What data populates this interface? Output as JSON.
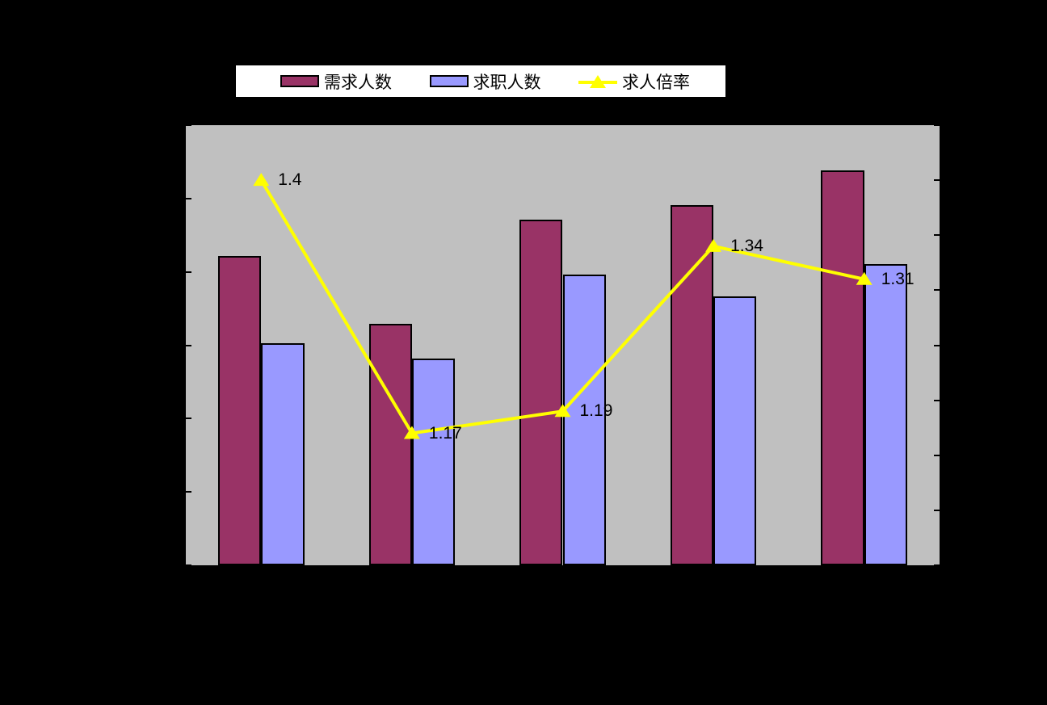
{
  "legend": {
    "items": [
      {
        "label": "需求人数",
        "swatch": "bar",
        "color": "#993366"
      },
      {
        "label": "求职人数",
        "swatch": "bar",
        "color": "#9999FF"
      },
      {
        "label": "求人倍率",
        "swatch": "line-triangle",
        "color": "#FFFF00"
      }
    ]
  },
  "colors": {
    "chart_background": "#000000",
    "plot_background": "#C0C0C0",
    "axis": "#000000",
    "legend_background": "#FFFFFF",
    "data_label_text": "#000000"
  },
  "chart_data": {
    "type": "bar",
    "subtype": "grouped-bars-with-line-overlay",
    "title": "",
    "categories": [
      "",
      "",
      "",
      "",
      ""
    ],
    "series": [
      {
        "name": "需求人数",
        "type": "bar",
        "axis": "left",
        "color": "#993366",
        "values": [
          4.22,
          3.29,
          4.71,
          4.91,
          5.38
        ]
      },
      {
        "name": "求职人数",
        "type": "bar",
        "axis": "left",
        "color": "#9999FF",
        "values": [
          3.03,
          2.82,
          3.96,
          3.67,
          4.11
        ]
      },
      {
        "name": "求人倍率",
        "type": "line",
        "axis": "right",
        "color": "#FFFF00",
        "marker": "triangle-up",
        "values": [
          1.4,
          1.17,
          1.19,
          1.34,
          1.31
        ],
        "labels": [
          "1.4",
          "1.17",
          "1.19",
          "1.34",
          "1.31"
        ]
      }
    ],
    "left_axis": {
      "min": 0,
      "max": 6,
      "major_divisions": 6,
      "tick_labels_visible": false
    },
    "right_axis": {
      "min": 1.05,
      "max": 1.45,
      "step": 0.05,
      "tick_labels_visible": false
    },
    "x_axis": {
      "tick_labels_visible": false,
      "category_boundary_ticks": 6
    },
    "grid": false,
    "legend_position": "top"
  }
}
